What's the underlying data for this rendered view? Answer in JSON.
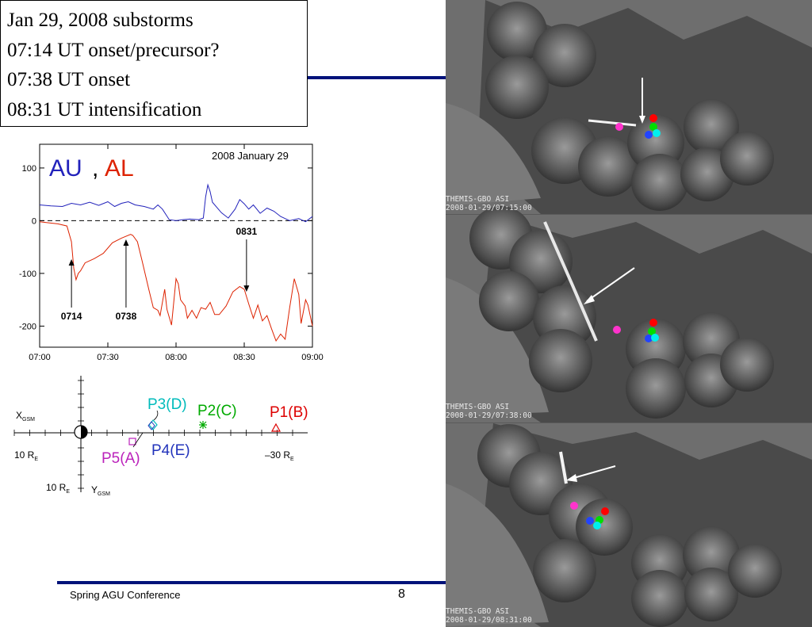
{
  "title_box": {
    "lines": [
      "Jan 29, 2008 substorms",
      "07:14 UT onset/precursor?",
      "07:38 UT onset",
      "08:31 UT intensification"
    ]
  },
  "footer": {
    "conference": "Spring AGU Conference",
    "page_number": "8"
  },
  "colors": {
    "au": "#2222bb",
    "al": "#dd2200",
    "rule": "#00127a",
    "p1": "#dd0000",
    "p2": "#00aa00",
    "p3": "#00bbbb",
    "p4": "#2233bb",
    "p5": "#bb22bb"
  },
  "chart_data": {
    "type": "line",
    "date_label": "2008 January 29",
    "legend": [
      {
        "name": "AU",
        "color": "#2222bb"
      },
      {
        "name": "AL",
        "color": "#dd2200"
      }
    ],
    "legend_separator": ",",
    "x_ticks": [
      "07:00",
      "07:30",
      "08:00",
      "08:30",
      "09:00"
    ],
    "y_ticks": [
      "100",
      "0",
      "-100",
      "-200"
    ],
    "ylim": [
      -240,
      145
    ],
    "xlim_minutes": [
      0,
      120
    ],
    "series": [
      {
        "name": "AU",
        "x_minutes": [
          0,
          5,
          10,
          14,
          18,
          22,
          26,
          30,
          33,
          36,
          39,
          42,
          46,
          50,
          52,
          54,
          57,
          60,
          63,
          66,
          70,
          72,
          73,
          74,
          75,
          76,
          78,
          80,
          83,
          86,
          88,
          90,
          92,
          94,
          97,
          100,
          103,
          106,
          110,
          114,
          117,
          120
        ],
        "values": [
          30,
          28,
          27,
          33,
          30,
          35,
          29,
          36,
          27,
          33,
          36,
          30,
          27,
          22,
          30,
          22,
          2,
          0,
          2,
          3,
          2,
          5,
          45,
          68,
          55,
          35,
          25,
          15,
          5,
          22,
          40,
          32,
          22,
          30,
          14,
          24,
          18,
          8,
          0,
          4,
          -2,
          8
        ]
      },
      {
        "name": "AL",
        "x_minutes": [
          0,
          4,
          8,
          12,
          14,
          15,
          16,
          17,
          18,
          20,
          24,
          28,
          32,
          36,
          40,
          41,
          43,
          45,
          48,
          50,
          52,
          53,
          55,
          56,
          58,
          60,
          61,
          62,
          64,
          65,
          67,
          69,
          71,
          73,
          75,
          77,
          79,
          82,
          85,
          88,
          90,
          92,
          94,
          96,
          98,
          100,
          102,
          104,
          106,
          108,
          110,
          112,
          114,
          115,
          117,
          118,
          120
        ],
        "values": [
          -2,
          -4,
          -6,
          -10,
          -40,
          -90,
          -112,
          -100,
          -95,
          -80,
          -72,
          -62,
          -42,
          -33,
          -26,
          -28,
          -40,
          -75,
          -130,
          -165,
          -170,
          -180,
          -130,
          -168,
          -198,
          -110,
          -120,
          -150,
          -162,
          -185,
          -170,
          -185,
          -165,
          -168,
          -155,
          -178,
          -178,
          -162,
          -135,
          -125,
          -130,
          -158,
          -185,
          -160,
          -190,
          -180,
          -205,
          -228,
          -215,
          -225,
          -165,
          -110,
          -140,
          -195,
          -150,
          -160,
          -200
        ]
      }
    ],
    "annotations": [
      {
        "label": "0714",
        "x_minutes": 14
      },
      {
        "label": "0738",
        "x_minutes": 38
      },
      {
        "label": "0831",
        "x_minutes": 91
      }
    ]
  },
  "orbit_diagram": {
    "x_axis_label": "X",
    "x_axis_sub": "GSM",
    "y_axis_label": "Y",
    "y_axis_sub": "GSM",
    "left_label": "10 R",
    "left_label_sub": "E",
    "right_label": "–30 R",
    "right_label_sub": "E",
    "bottom_label": "10 R",
    "bottom_label_sub": "E",
    "probes": [
      {
        "label": "P1(B)",
        "color": "#dd0000",
        "marker": "triangle"
      },
      {
        "label": "P2(C)",
        "color": "#00aa00",
        "marker": "asterisk"
      },
      {
        "label": "P3(D)",
        "color": "#00bbbb",
        "marker": "diamond"
      },
      {
        "label": "P4(E)",
        "color": "#2233bb",
        "marker": "diamond"
      },
      {
        "label": "P5(A)",
        "color": "#bb22bb",
        "marker": "square"
      }
    ]
  },
  "asi_panels": [
    {
      "instrument": "THEMIS-GBO ASI",
      "timestamp": "2008-01-29/07:15:00"
    },
    {
      "instrument": "THEMIS-GBO ASI",
      "timestamp": "2008-01-29/07:38:00"
    },
    {
      "instrument": "THEMIS-GBO ASI",
      "timestamp": "2008-01-29/08:31:00"
    }
  ]
}
